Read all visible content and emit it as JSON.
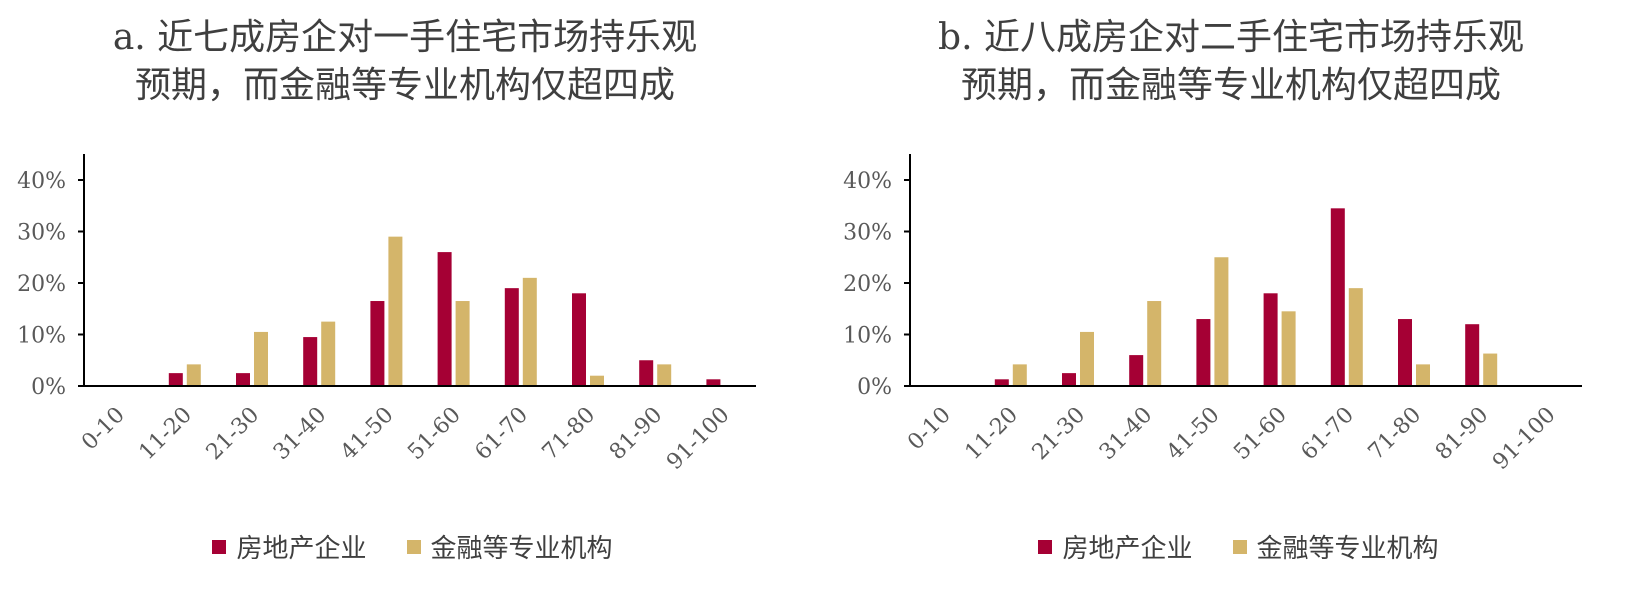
{
  "colors": {
    "developer": "#a50034",
    "financial": "#d4b56a",
    "axis": "#000000",
    "text": "#595959"
  },
  "legend": {
    "developer": "房地产企业",
    "financial": "金融等专业机构",
    "position": "bottom"
  },
  "chart_data": [
    {
      "type": "bar",
      "title_line1": "a. 近七成房企对一手住宅市场持乐观",
      "title_line2": "预期，而金融等专业机构仅超四成",
      "categories": [
        "0-10",
        "11-20",
        "21-30",
        "31-40",
        "41-50",
        "51-60",
        "61-70",
        "71-80",
        "81-90",
        "91-100"
      ],
      "ylim": [
        0,
        40
      ],
      "yticks": [
        "0%",
        "10%",
        "20%",
        "30%",
        "40%"
      ],
      "grid": false,
      "series": [
        {
          "name": "房地产企业",
          "values": [
            0,
            2.5,
            2.5,
            9.5,
            16.5,
            26,
            19,
            18,
            5,
            1.3
          ]
        },
        {
          "name": "金融等专业机构",
          "values": [
            0,
            4.2,
            10.5,
            12.5,
            29,
            16.5,
            21,
            2,
            4.2,
            0
          ]
        }
      ]
    },
    {
      "type": "bar",
      "title_line1": "b. 近八成房企对二手住宅市场持乐观",
      "title_line2": "预期，而金融等专业机构仅超四成",
      "categories": [
        "0-10",
        "11-20",
        "21-30",
        "31-40",
        "41-50",
        "51-60",
        "61-70",
        "71-80",
        "81-90",
        "91-100"
      ],
      "ylim": [
        0,
        40
      ],
      "yticks": [
        "0%",
        "10%",
        "20%",
        "30%",
        "40%"
      ],
      "grid": false,
      "series": [
        {
          "name": "房地产企业",
          "values": [
            0,
            1.3,
            2.5,
            6,
            13,
            18,
            34.5,
            13,
            12,
            0
          ]
        },
        {
          "name": "金融等专业机构",
          "values": [
            0,
            4.2,
            10.5,
            16.5,
            25,
            14.5,
            19,
            4.2,
            6.3,
            0
          ]
        }
      ]
    }
  ]
}
